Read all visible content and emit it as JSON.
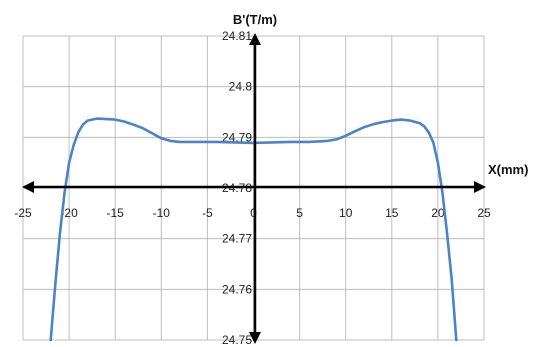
{
  "chart_data": {
    "type": "line",
    "xlabel": "X(mm)",
    "ylabel": "B'(T/m)",
    "xlim": [
      -25,
      25
    ],
    "ylim": [
      24.75,
      24.81
    ],
    "xticks": [
      -25,
      -20,
      -15,
      -10,
      -5,
      0,
      5,
      10,
      15,
      20,
      25
    ],
    "xtick_labels": [
      "-25",
      "-20",
      "-15",
      "-10",
      "-5",
      "0",
      "5",
      "10",
      "15",
      "20",
      "25"
    ],
    "yticks": [
      24.75,
      24.76,
      24.77,
      24.78,
      24.79,
      24.8,
      24.81
    ],
    "ytick_labels": [
      "24.75",
      "24.76",
      "24.77",
      "24.78",
      "24.79",
      "24.8",
      "24.81"
    ],
    "grid": true,
    "series_color": "#4a84c8",
    "series": [
      {
        "x": [
          -22.0,
          -21.5,
          -21.0,
          -20.5,
          -20.0,
          -19.5,
          -19.0,
          -18.5,
          -18.0,
          -17.0,
          -16.0,
          -15.0,
          -14.0,
          -13.0,
          -12.0,
          -11.0,
          -10.0,
          -9.0,
          -8.0,
          -6.0,
          -4.0,
          -2.0,
          0.0,
          2.0,
          4.0,
          6.0,
          8.0,
          9.0,
          10.0,
          11.0,
          12.0,
          13.0,
          14.0,
          15.0,
          16.0,
          17.0,
          18.0,
          18.5,
          19.0,
          19.5,
          20.0,
          20.5,
          21.0,
          21.5,
          22.0
        ],
        "y": [
          24.75,
          24.761,
          24.771,
          24.779,
          24.785,
          24.7885,
          24.791,
          24.7925,
          24.7933,
          24.7937,
          24.7936,
          24.7935,
          24.7931,
          24.7925,
          24.7918,
          24.7908,
          24.7898,
          24.7893,
          24.7891,
          24.7891,
          24.7891,
          24.789,
          24.7889,
          24.789,
          24.7891,
          24.7891,
          24.7893,
          24.7896,
          24.7903,
          24.7912,
          24.792,
          24.7926,
          24.793,
          24.7933,
          24.7935,
          24.7933,
          24.7928,
          24.7922,
          24.791,
          24.789,
          24.785,
          24.779,
          24.771,
          24.762,
          24.75
        ]
      }
    ]
  }
}
